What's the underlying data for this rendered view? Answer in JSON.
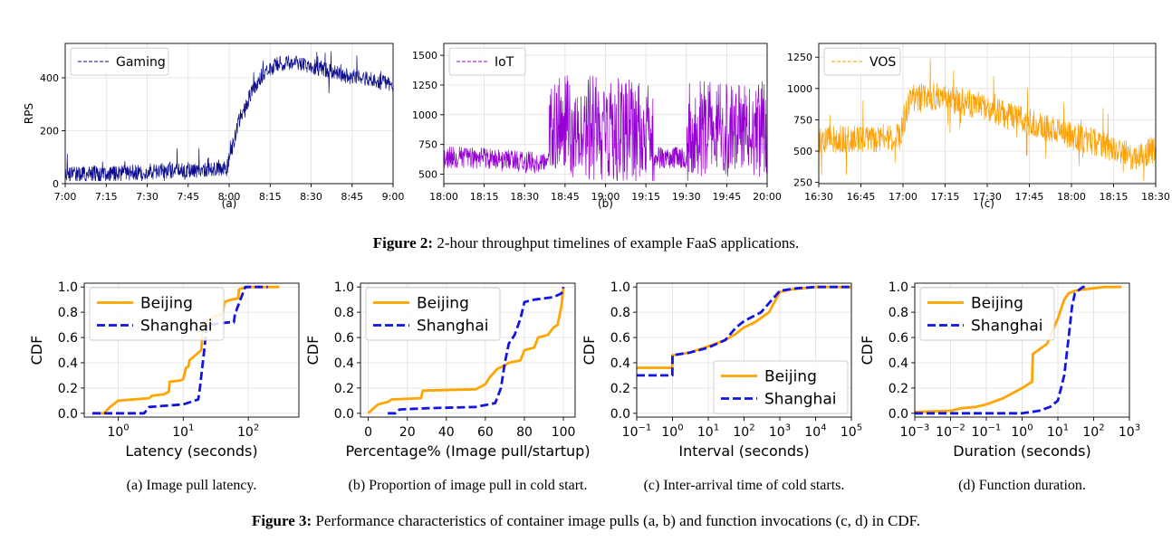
{
  "figure2": {
    "caption_label": "Figure 2:",
    "caption_text": " 2-hour throughput timelines of example FaaS applications."
  },
  "figure3": {
    "caption_label": "Figure 3:",
    "caption_text": " Performance characteristics of container image pulls (a, b) and function invocations (c, d) in CDF."
  },
  "colors": {
    "gaming": "#0a0a8c",
    "iot": "#9400d3",
    "vos": "#ff9f00",
    "beijing": "#ffa500",
    "shanghai": "#1414e6",
    "grid": "#e0e0e0"
  },
  "chart_data": [
    {
      "id": "fig2a",
      "type": "line",
      "sublabel": "(a)",
      "title": "",
      "xlabel": "",
      "ylabel": "RPS",
      "xlim": [
        0,
        120
      ],
      "ylim": [
        0,
        530
      ],
      "x_ticks": [
        0,
        15,
        30,
        45,
        60,
        75,
        90,
        105,
        120
      ],
      "x_tick_labels": [
        "7:00",
        "7:15",
        "7:30",
        "7:45",
        "8:00",
        "8:15",
        "8:30",
        "8:45",
        "9:00"
      ],
      "y_ticks": [
        0,
        200,
        400
      ],
      "y_tick_labels": [
        "0",
        "200",
        "400"
      ],
      "legend_position": "top-left",
      "series": [
        {
          "name": "Gaming",
          "color_key": "gaming",
          "style": "dashed",
          "noise": 30,
          "x": [
            0,
            15,
            30,
            45,
            59,
            61,
            64,
            68,
            72,
            77,
            83,
            90,
            100,
            110,
            120
          ],
          "y": [
            33,
            38,
            46,
            52,
            56,
            130,
            250,
            340,
            410,
            450,
            462,
            445,
            415,
            395,
            375
          ]
        }
      ]
    },
    {
      "id": "fig2b",
      "type": "line",
      "sublabel": "(b)",
      "title": "",
      "xlabel": "",
      "ylabel": "",
      "xlim": [
        0,
        120
      ],
      "ylim": [
        420,
        1600
      ],
      "x_ticks": [
        0,
        15,
        30,
        45,
        60,
        75,
        90,
        105,
        120
      ],
      "x_tick_labels": [
        "18:00",
        "18:15",
        "18:30",
        "18:45",
        "19:00",
        "19:15",
        "19:30",
        "19:45",
        "20:00"
      ],
      "y_ticks": [
        500,
        750,
        1000,
        1250,
        1500
      ],
      "y_tick_labels": [
        "500",
        "750",
        "1000",
        "1250",
        "1500"
      ],
      "legend_position": "top-left",
      "series": [
        {
          "name": "IoT",
          "color_key": "iot",
          "style": "dashed",
          "noise": 0,
          "x": [
            0,
            10,
            20,
            30,
            39,
            40,
            50,
            60,
            70,
            77,
            78,
            85,
            90,
            91,
            100,
            110,
            120
          ],
          "y": [
            640,
            640,
            620,
            600,
            600,
            900,
            900,
            880,
            870,
            870,
            640,
            640,
            640,
            880,
            880,
            870,
            880
          ],
          "bands": [
            {
              "from": 0,
              "to": 39,
              "amp": 90
            },
            {
              "from": 39,
              "to": 78,
              "amp": 380
            },
            {
              "from": 78,
              "to": 90,
              "amp": 90
            },
            {
              "from": 90,
              "to": 120,
              "amp": 350
            }
          ]
        }
      ]
    },
    {
      "id": "fig2c",
      "type": "line",
      "sublabel": "(c)",
      "title": "",
      "xlabel": "",
      "ylabel": "",
      "xlim": [
        0,
        120
      ],
      "ylim": [
        240,
        1360
      ],
      "x_ticks": [
        0,
        15,
        30,
        45,
        60,
        75,
        90,
        105,
        120
      ],
      "x_tick_labels": [
        "16:30",
        "16:45",
        "17:00",
        "17:15",
        "17:30",
        "17:45",
        "18:00",
        "18:15",
        "18:30"
      ],
      "y_ticks": [
        250,
        500,
        750,
        1000,
        1250
      ],
      "y_tick_labels": [
        "250",
        "500",
        "750",
        "1000",
        "1250"
      ],
      "legend_position": "top-left",
      "series": [
        {
          "name": "VOS",
          "color_key": "vos",
          "style": "dashed",
          "noise": 110,
          "x": [
            0,
            10,
            20,
            29,
            32,
            40,
            50,
            60,
            70,
            80,
            90,
            100,
            110,
            113,
            120
          ],
          "y": [
            580,
            600,
            600,
            620,
            880,
            940,
            900,
            850,
            760,
            700,
            620,
            560,
            480,
            440,
            520
          ]
        }
      ]
    },
    {
      "id": "fig3a",
      "type": "line",
      "sublabel": "(a)  Image pull latency.",
      "title": "",
      "xlabel": "Latency (seconds)",
      "ylabel": "CDF",
      "xscale": "log",
      "xlim": [
        0.3,
        600
      ],
      "ylim": [
        -0.03,
        1.03
      ],
      "x_ticks": [
        1,
        10,
        100
      ],
      "x_tick_labels": [
        [
          "10",
          "0"
        ],
        [
          "10",
          "1"
        ],
        [
          "10",
          "2"
        ]
      ],
      "y_ticks": [
        0,
        0.2,
        0.4,
        0.6,
        0.8,
        1.0
      ],
      "y_tick_labels": [
        "0.0",
        "0.2",
        "0.4",
        "0.6",
        "0.8",
        "1.0"
      ],
      "legend_position": "top-left",
      "series": [
        {
          "name": "Beijing",
          "color_key": "beijing",
          "style": "solid",
          "x": [
            0.4,
            0.6,
            0.75,
            1.0,
            3.0,
            3.3,
            5.0,
            6.0,
            6.2,
            9.0,
            10.0,
            11.0,
            12.0,
            12.5,
            19.0,
            20.0,
            21.0,
            22.0,
            25.0,
            30.0,
            40.0,
            43.0,
            48.0,
            55.0,
            70.0,
            72.0,
            80.0,
            100.0,
            300.0
          ],
          "y": [
            0.0,
            0.0,
            0.05,
            0.1,
            0.12,
            0.14,
            0.15,
            0.17,
            0.25,
            0.26,
            0.27,
            0.36,
            0.37,
            0.42,
            0.5,
            0.7,
            0.71,
            0.72,
            0.74,
            0.77,
            0.78,
            0.88,
            0.89,
            0.9,
            0.91,
            0.98,
            0.99,
            1.0,
            1.0
          ]
        },
        {
          "name": "Shanghai",
          "color_key": "shanghai",
          "style": "dashed",
          "x": [
            0.4,
            2.5,
            3.0,
            10.0,
            17.0,
            18.0,
            19.0,
            21.0,
            23.0,
            50.0,
            60.0,
            63.0,
            65.0,
            85.0,
            90.0,
            200.0
          ],
          "y": [
            0.0,
            0.0,
            0.05,
            0.07,
            0.11,
            0.2,
            0.3,
            0.5,
            0.7,
            0.72,
            0.72,
            0.8,
            0.81,
            0.97,
            1.0,
            1.0
          ]
        }
      ]
    },
    {
      "id": "fig3b",
      "type": "line",
      "sublabel": "(b)  Proportion of image pull in cold start.",
      "title": "",
      "xlabel": "Percentage% (Image pull/startup)",
      "ylabel": "CDF",
      "xlim": [
        -4,
        106
      ],
      "ylim": [
        -0.03,
        1.03
      ],
      "x_ticks": [
        0,
        20,
        40,
        60,
        80,
        100
      ],
      "x_tick_labels": [
        "0",
        "20",
        "40",
        "60",
        "80",
        "100"
      ],
      "y_ticks": [
        0,
        0.2,
        0.4,
        0.6,
        0.8,
        1.0
      ],
      "y_tick_labels": [
        "0.0",
        "0.2",
        "0.4",
        "0.6",
        "0.8",
        "1.0"
      ],
      "legend_position": "top-left",
      "series": [
        {
          "name": "Beijing",
          "color_key": "beijing",
          "style": "solid",
          "x": [
            0,
            2,
            5,
            10,
            12,
            27,
            28,
            55,
            60,
            62,
            66,
            70,
            72,
            75,
            78,
            80,
            85,
            87,
            92,
            95,
            97,
            99,
            100
          ],
          "y": [
            0.0,
            0.03,
            0.07,
            0.09,
            0.11,
            0.12,
            0.18,
            0.19,
            0.23,
            0.28,
            0.35,
            0.38,
            0.4,
            0.41,
            0.42,
            0.5,
            0.52,
            0.6,
            0.62,
            0.68,
            0.7,
            0.85,
            1.0
          ]
        },
        {
          "name": "Shanghai",
          "color_key": "shanghai",
          "style": "dashed",
          "x": [
            10,
            14,
            16,
            30,
            55,
            65,
            68,
            70,
            72,
            75,
            78,
            80,
            85,
            95,
            99,
            100
          ],
          "y": [
            0.0,
            0.0,
            0.03,
            0.04,
            0.05,
            0.08,
            0.2,
            0.4,
            0.55,
            0.62,
            0.75,
            0.88,
            0.9,
            0.92,
            0.95,
            1.0
          ]
        }
      ]
    },
    {
      "id": "fig3c",
      "type": "line",
      "sublabel": "(c)  Inter-arrival time of cold starts.",
      "title": "",
      "xlabel": "Interval (seconds)",
      "ylabel": "CDF",
      "xscale": "log",
      "xlim": [
        0.1,
        100000
      ],
      "ylim": [
        -0.03,
        1.03
      ],
      "x_ticks": [
        0.1,
        1,
        10,
        100,
        1000,
        10000,
        100000
      ],
      "x_tick_labels": [
        [
          "10",
          "−1"
        ],
        [
          "10",
          "0"
        ],
        [
          "10",
          "1"
        ],
        [
          "10",
          "2"
        ],
        [
          "10",
          "3"
        ],
        [
          "10",
          "4"
        ],
        [
          "10",
          "5"
        ]
      ],
      "y_ticks": [
        0,
        0.2,
        0.4,
        0.6,
        0.8,
        1.0
      ],
      "y_tick_labels": [
        "0.0",
        "0.2",
        "0.4",
        "0.6",
        "0.8",
        "1.0"
      ],
      "legend_position": "bottom-right",
      "series": [
        {
          "name": "Beijing",
          "color_key": "beijing",
          "style": "solid",
          "x": [
            0.1,
            0.99,
            1.0,
            3.0,
            10.0,
            30.0,
            60.0,
            100.0,
            200.0,
            500.0,
            1000.0,
            2000.0,
            10000.0,
            100000.0
          ],
          "y": [
            0.36,
            0.36,
            0.46,
            0.48,
            0.53,
            0.58,
            0.63,
            0.68,
            0.72,
            0.8,
            0.96,
            0.98,
            1.0,
            1.0
          ]
        },
        {
          "name": "Shanghai",
          "color_key": "shanghai",
          "style": "dashed",
          "x": [
            0.1,
            0.99,
            1.0,
            3.0,
            10.0,
            30.0,
            60.0,
            100.0,
            300.0,
            700.0,
            1000.0,
            3000.0,
            10000.0,
            100000.0
          ],
          "y": [
            0.3,
            0.3,
            0.46,
            0.48,
            0.52,
            0.58,
            0.68,
            0.73,
            0.8,
            0.92,
            0.97,
            0.99,
            1.0,
            1.0
          ]
        }
      ]
    },
    {
      "id": "fig3d",
      "type": "line",
      "sublabel": "(d)  Function duration.",
      "title": "",
      "xlabel": "Duration (seconds)",
      "ylabel": "CDF",
      "xscale": "log",
      "xlim": [
        0.001,
        1000
      ],
      "ylim": [
        -0.03,
        1.03
      ],
      "x_ticks": [
        0.001,
        0.01,
        0.1,
        1,
        10,
        100,
        1000
      ],
      "x_tick_labels": [
        [
          "10",
          "−3"
        ],
        [
          "10",
          "−2"
        ],
        [
          "10",
          "−1"
        ],
        [
          "10",
          "0"
        ],
        [
          "10",
          "1"
        ],
        [
          "10",
          "2"
        ],
        [
          "10",
          "3"
        ]
      ],
      "y_ticks": [
        0,
        0.2,
        0.4,
        0.6,
        0.8,
        1.0
      ],
      "y_tick_labels": [
        "0.0",
        "0.2",
        "0.4",
        "0.6",
        "0.8",
        "1.0"
      ],
      "legend_position": "top-left",
      "series": [
        {
          "name": "Beijing",
          "color_key": "beijing",
          "style": "solid",
          "x": [
            0.001,
            0.01,
            0.02,
            0.05,
            0.1,
            0.3,
            1.0,
            1.9,
            2.0,
            5.0,
            10.0,
            15.0,
            20.0,
            30.0,
            50.0,
            200.0,
            600.0
          ],
          "y": [
            0.01,
            0.02,
            0.04,
            0.05,
            0.07,
            0.12,
            0.2,
            0.25,
            0.47,
            0.55,
            0.75,
            0.9,
            0.95,
            0.97,
            0.98,
            1.0,
            1.0
          ]
        },
        {
          "name": "Shanghai",
          "color_key": "shanghai",
          "style": "dashed",
          "x": [
            0.001,
            1.0,
            3.0,
            6.0,
            10.0,
            15.0,
            20.0,
            25.0,
            30.0,
            40.0,
            50.0,
            70.0
          ],
          "y": [
            0.0,
            0.0,
            0.02,
            0.05,
            0.1,
            0.3,
            0.6,
            0.85,
            0.95,
            0.98,
            1.0,
            1.0
          ]
        }
      ]
    }
  ]
}
